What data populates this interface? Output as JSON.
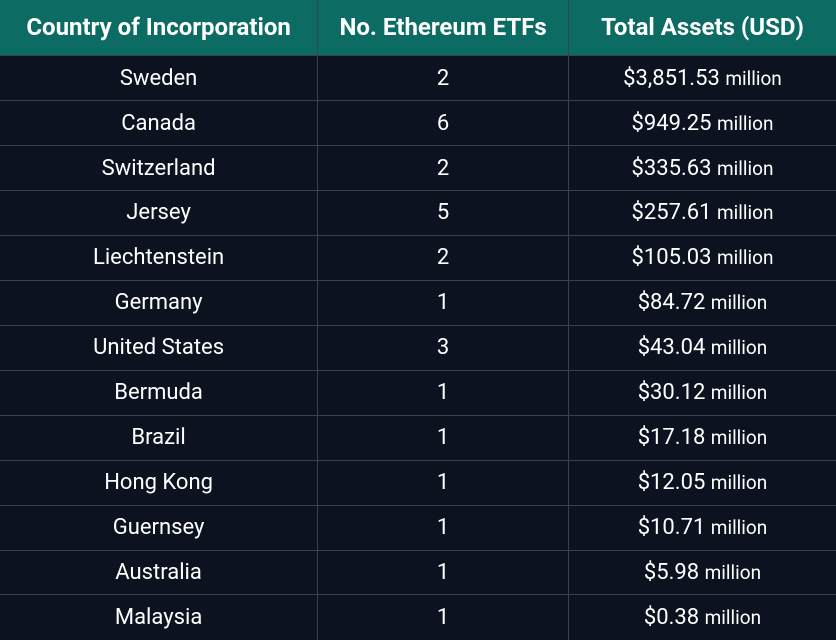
{
  "styling": {
    "header_bg": "#0c6b63",
    "row_bg": "#0c1220",
    "border_color": "#3a4252",
    "text_color": "#ffffff",
    "header_fontsize": 24,
    "cell_fontsize": 22,
    "million_fontsize": 19,
    "column_widths_pct": [
      38,
      30,
      32
    ]
  },
  "table": {
    "columns": [
      {
        "label": "Country of Incorporation",
        "align": "center"
      },
      {
        "label": "No. Ethereum ETFs",
        "align": "center"
      },
      {
        "label": "Total Assets (USD)",
        "align": "center"
      }
    ],
    "rows": [
      {
        "country": "Sweden",
        "count": "2",
        "assets": "$3,851.53",
        "unit": "million"
      },
      {
        "country": "Canada",
        "count": "6",
        "assets": "$949.25",
        "unit": "million"
      },
      {
        "country": "Switzerland",
        "count": "2",
        "assets": "$335.63",
        "unit": "million"
      },
      {
        "country": "Jersey",
        "count": "5",
        "assets": "$257.61",
        "unit": "million"
      },
      {
        "country": "Liechtenstein",
        "count": "2",
        "assets": "$105.03",
        "unit": "million"
      },
      {
        "country": "Germany",
        "count": "1",
        "assets": "$84.72",
        "unit": "million"
      },
      {
        "country": "United States",
        "count": "3",
        "assets": "$43.04",
        "unit": "million"
      },
      {
        "country": "Bermuda",
        "count": "1",
        "assets": "$30.12",
        "unit": "million"
      },
      {
        "country": "Brazil",
        "count": "1",
        "assets": "$17.18",
        "unit": "million"
      },
      {
        "country": "Hong Kong",
        "count": "1",
        "assets": "$12.05",
        "unit": "million"
      },
      {
        "country": "Guernsey",
        "count": "1",
        "assets": "$10.71",
        "unit": "million"
      },
      {
        "country": "Australia",
        "count": "1",
        "assets": "$5.98",
        "unit": "million"
      },
      {
        "country": "Malaysia",
        "count": "1",
        "assets": "$0.38",
        "unit": "million"
      }
    ]
  }
}
